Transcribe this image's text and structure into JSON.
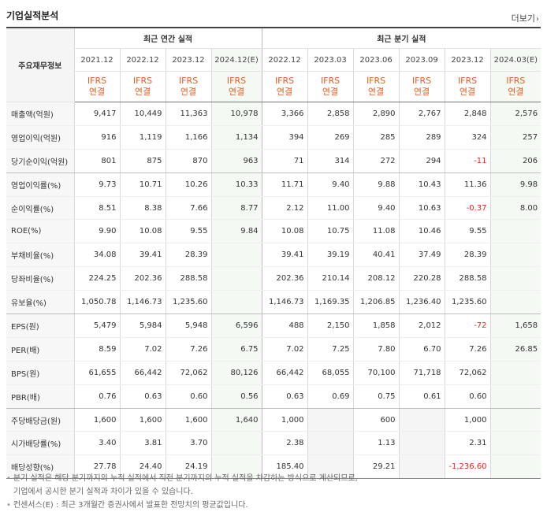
{
  "section_title": "기업실적분석",
  "more_label": "더보기",
  "row_header_label": "주요재무정보",
  "annual_group": "최근 연간 실적",
  "quarter_group": "최근 분기 실적",
  "annual_periods": [
    "2021.12",
    "2022.12",
    "2023.12",
    "2024.12(E)"
  ],
  "quarter_periods": [
    "2022.12",
    "2023.03",
    "2023.06",
    "2023.09",
    "2023.12",
    "2024.03(E)"
  ],
  "basis_line1": "IFRS",
  "basis_line2": "연결",
  "rows": [
    {
      "label": "매출액(억원)",
      "values": [
        "9,417",
        "10,449",
        "11,363",
        "10,978",
        "3,366",
        "2,858",
        "2,890",
        "2,767",
        "2,848",
        "2,576"
      ]
    },
    {
      "label": "영업이익(억원)",
      "values": [
        "916",
        "1,119",
        "1,166",
        "1,134",
        "394",
        "269",
        "285",
        "289",
        "324",
        "257"
      ]
    },
    {
      "label": "당기순이익(억원)",
      "values": [
        "801",
        "875",
        "870",
        "963",
        "71",
        "314",
        "272",
        "294",
        "-11",
        "206"
      ]
    },
    {
      "label": "영업이익률(%)",
      "values": [
        "9.73",
        "10.71",
        "10.26",
        "10.33",
        "11.71",
        "9.40",
        "9.88",
        "10.43",
        "11.36",
        "9.98"
      ]
    },
    {
      "label": "순이익률(%)",
      "values": [
        "8.51",
        "8.38",
        "7.66",
        "8.77",
        "2.12",
        "11.00",
        "9.40",
        "10.63",
        "-0.37",
        "8.00"
      ]
    },
    {
      "label": "ROE(%)",
      "values": [
        "9.90",
        "10.08",
        "9.55",
        "9.84",
        "10.08",
        "10.75",
        "11.08",
        "10.46",
        "9.55",
        ""
      ]
    },
    {
      "label": "부채비율(%)",
      "values": [
        "34.08",
        "39.41",
        "28.39",
        "",
        "39.41",
        "39.19",
        "40.41",
        "37.49",
        "28.39",
        ""
      ]
    },
    {
      "label": "당좌비율(%)",
      "values": [
        "224.25",
        "202.36",
        "288.58",
        "",
        "202.36",
        "210.14",
        "208.12",
        "220.28",
        "288.58",
        ""
      ]
    },
    {
      "label": "유보율(%)",
      "values": [
        "1,050.78",
        "1,146.73",
        "1,235.60",
        "",
        "1,146.73",
        "1,169.35",
        "1,206.85",
        "1,236.40",
        "1,235.60",
        ""
      ]
    },
    {
      "label": "EPS(원)",
      "values": [
        "5,479",
        "5,984",
        "5,948",
        "6,596",
        "488",
        "2,150",
        "1,858",
        "2,012",
        "-72",
        "1,658"
      ]
    },
    {
      "label": "PER(배)",
      "values": [
        "8.59",
        "7.02",
        "7.26",
        "6.75",
        "7.02",
        "7.25",
        "7.80",
        "6.70",
        "7.26",
        "26.85"
      ]
    },
    {
      "label": "BPS(원)",
      "values": [
        "61,655",
        "66,442",
        "72,062",
        "80,126",
        "66,442",
        "68,055",
        "70,100",
        "71,718",
        "72,062",
        ""
      ]
    },
    {
      "label": "PBR(배)",
      "values": [
        "0.76",
        "0.63",
        "0.60",
        "0.56",
        "0.63",
        "0.69",
        "0.75",
        "0.61",
        "0.60",
        ""
      ]
    },
    {
      "label": "주당배당금(원)",
      "values": [
        "1,600",
        "1,600",
        "1,600",
        "1,640",
        "1,000",
        "",
        "600",
        "",
        "1,000",
        ""
      ]
    },
    {
      "label": "시가배당률(%)",
      "values": [
        "3.40",
        "3.81",
        "3.70",
        "",
        "2.38",
        "",
        "1.13",
        "",
        "2.31",
        ""
      ]
    },
    {
      "label": "배당성향(%)",
      "values": [
        "27.78",
        "24.40",
        "24.19",
        "",
        "185.40",
        "",
        "29.21",
        "",
        "-1,236.60",
        ""
      ]
    }
  ],
  "notes": [
    "분기 실적은 해당 분기까지의 누적 실적에서 직전 분기까지의 누적 실적을 차감하는 방식으로 계산되므로,",
    "기업에서 공시한 분기 실적과 차이가 있을 수 있습니다.",
    "컨센서스(E) : 최근 3개월간 증권사에서 발표한 전망치의 평균값입니다."
  ],
  "colors": {
    "ifrs": "#e55d22",
    "negative": "#e0251c",
    "estimate_bg": "#f4faf3"
  }
}
